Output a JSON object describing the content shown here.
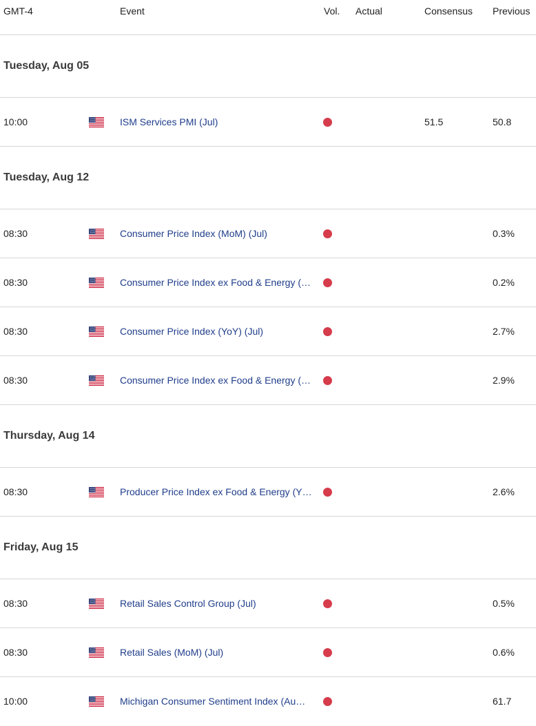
{
  "header": {
    "timezone": "GMT-4",
    "event": "Event",
    "vol": "Vol.",
    "actual": "Actual",
    "consensus": "Consensus",
    "previous": "Previous"
  },
  "colors": {
    "high_volatility": "#d63c4b",
    "event_link": "#1f3d8a",
    "divider": "#d6d6d6"
  },
  "days": [
    {
      "label": "Tuesday, Aug 05",
      "events": [
        {
          "time": "10:00",
          "country_icon": "us-flag-icon",
          "event": "ISM Services PMI (Jul)",
          "volatility": "high",
          "actual": "",
          "consensus": "51.5",
          "previous": "50.8"
        }
      ]
    },
    {
      "label": "Tuesday, Aug 12",
      "events": [
        {
          "time": "08:30",
          "country_icon": "us-flag-icon",
          "event": "Consumer Price Index (MoM) (Jul)",
          "volatility": "high",
          "actual": "",
          "consensus": "",
          "previous": "0.3%"
        },
        {
          "time": "08:30",
          "country_icon": "us-flag-icon",
          "event": "Consumer Price Index ex Food & Energy (…",
          "volatility": "high",
          "actual": "",
          "consensus": "",
          "previous": "0.2%"
        },
        {
          "time": "08:30",
          "country_icon": "us-flag-icon",
          "event": "Consumer Price Index (YoY) (Jul)",
          "volatility": "high",
          "actual": "",
          "consensus": "",
          "previous": "2.7%"
        },
        {
          "time": "08:30",
          "country_icon": "us-flag-icon",
          "event": "Consumer Price Index ex Food & Energy (…",
          "volatility": "high",
          "actual": "",
          "consensus": "",
          "previous": "2.9%"
        }
      ]
    },
    {
      "label": "Thursday, Aug 14",
      "events": [
        {
          "time": "08:30",
          "country_icon": "us-flag-icon",
          "event": "Producer Price Index ex Food & Energy (Y…",
          "volatility": "high",
          "actual": "",
          "consensus": "",
          "previous": "2.6%"
        }
      ]
    },
    {
      "label": "Friday, Aug 15",
      "events": [
        {
          "time": "08:30",
          "country_icon": "us-flag-icon",
          "event": "Retail Sales Control Group (Jul)",
          "volatility": "high",
          "actual": "",
          "consensus": "",
          "previous": "0.5%"
        },
        {
          "time": "08:30",
          "country_icon": "us-flag-icon",
          "event": "Retail Sales (MoM) (Jul)",
          "volatility": "high",
          "actual": "",
          "consensus": "",
          "previous": "0.6%"
        },
        {
          "time": "10:00",
          "country_icon": "us-flag-icon",
          "event": "Michigan Consumer Sentiment Index (Au…",
          "volatility": "high",
          "actual": "",
          "consensus": "",
          "previous": "61.7"
        }
      ]
    }
  ]
}
